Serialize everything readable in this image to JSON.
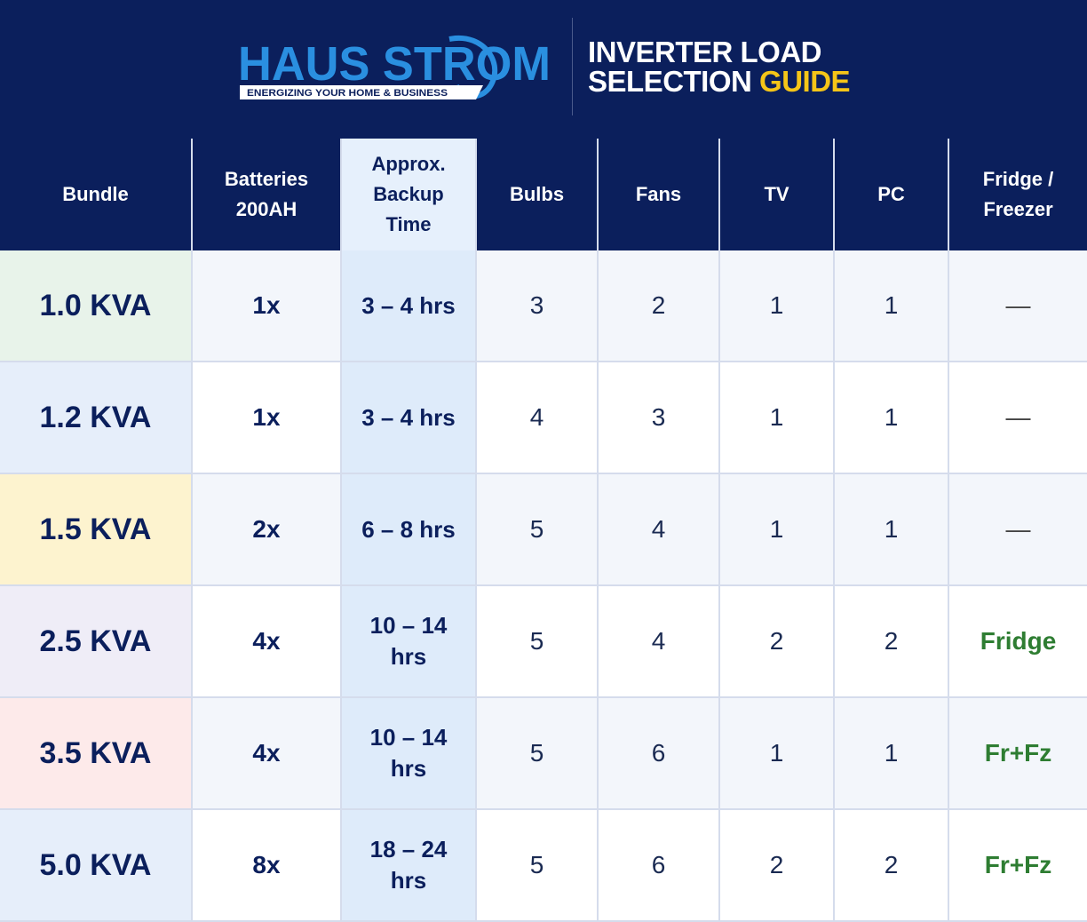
{
  "header": {
    "brand_main": "HAUS STROM",
    "brand_tagline": "ENERGIZING YOUR HOME & BUSINESS",
    "title_line1": "INVERTER LOAD",
    "title_line2_prefix": "SELECTION ",
    "title_line2_accent": "GUIDE",
    "accent_color": "#f5c518",
    "background_color": "#0b1f5c"
  },
  "table": {
    "columns": [
      {
        "line1": "Bundle",
        "line2": "",
        "line3": ""
      },
      {
        "line1": "Batteries",
        "line2": "200AH",
        "line3": ""
      },
      {
        "line1": "Approx.",
        "line2": "Backup",
        "line3": "Time"
      },
      {
        "line1": "Bulbs",
        "line2": "",
        "line3": ""
      },
      {
        "line1": "Fans",
        "line2": "",
        "line3": ""
      },
      {
        "line1": "TV",
        "line2": "",
        "line3": ""
      },
      {
        "line1": "PC",
        "line2": "",
        "line3": ""
      },
      {
        "line1": "Fridge /",
        "line2": "Freezer",
        "line3": ""
      }
    ],
    "rows": [
      {
        "bundle": "1.0 KVA",
        "bundle_color": "#e8f3ea",
        "batteries": "1x",
        "backup_l1": "3 – 4 hrs",
        "backup_l2": "",
        "bulbs": "3",
        "fans": "2",
        "tv": "1",
        "pc": "1",
        "fridge": "—",
        "fridge_style": "dash"
      },
      {
        "bundle": "1.2 KVA",
        "bundle_color": "#e6eefa",
        "batteries": "1x",
        "backup_l1": "3 – 4 hrs",
        "backup_l2": "",
        "bulbs": "4",
        "fans": "3",
        "tv": "1",
        "pc": "1",
        "fridge": "—",
        "fridge_style": "dash"
      },
      {
        "bundle": "1.5 KVA",
        "bundle_color": "#fdf3cf",
        "batteries": "2x",
        "backup_l1": "6 – 8 hrs",
        "backup_l2": "",
        "bulbs": "5",
        "fans": "4",
        "tv": "1",
        "pc": "1",
        "fridge": "—",
        "fridge_style": "dash"
      },
      {
        "bundle": "2.5 KVA",
        "bundle_color": "#efedf7",
        "batteries": "4x",
        "backup_l1": "10 – 14",
        "backup_l2": "hrs",
        "bulbs": "5",
        "fans": "4",
        "tv": "2",
        "pc": "2",
        "fridge": "Fridge",
        "fridge_style": "green"
      },
      {
        "bundle": "3.5 KVA",
        "bundle_color": "#fdeaea",
        "batteries": "4x",
        "backup_l1": "10 – 14",
        "backup_l2": "hrs",
        "bulbs": "5",
        "fans": "6",
        "tv": "1",
        "pc": "1",
        "fridge": "Fr+Fz",
        "fridge_style": "green"
      },
      {
        "bundle": "5.0 KVA",
        "bundle_color": "#e6eefa",
        "batteries": "8x",
        "backup_l1": "18 – 24",
        "backup_l2": "hrs",
        "bulbs": "5",
        "fans": "6",
        "tv": "2",
        "pc": "2",
        "fridge": "Fr+Fz",
        "fridge_style": "green"
      }
    ]
  }
}
